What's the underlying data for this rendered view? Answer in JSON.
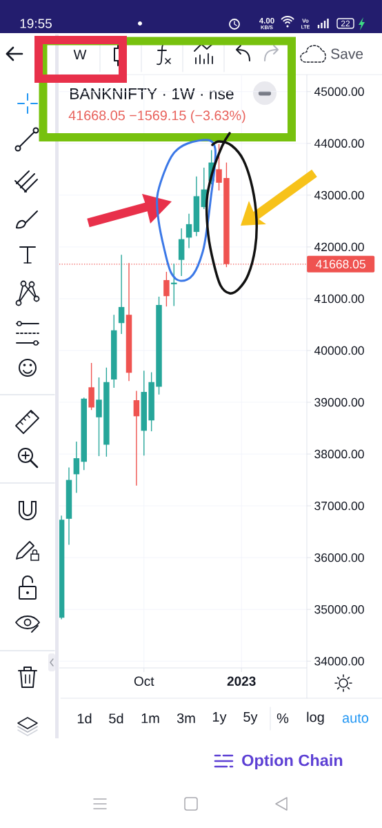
{
  "chart_data": {
    "type": "candlestick",
    "title": "BANKNIFTY · 1W · nse",
    "subtitle": "41668.05 −1569.15 (−3.63%)",
    "x": [
      "2022-07-18",
      "2022-07-25",
      "2022-08-01",
      "2022-08-08",
      "2022-08-15",
      "2022-08-22",
      "2022-08-29",
      "2022-09-05",
      "2022-09-12",
      "2022-09-19",
      "2022-09-26",
      "2022-10-03",
      "2022-10-10",
      "2022-10-17",
      "2022-10-24",
      "2022-10-31",
      "2022-11-07",
      "2022-11-14",
      "2022-11-21",
      "2022-11-28",
      "2022-12-05",
      "2022-12-12",
      "2022-12-19"
    ],
    "ohlc": [
      [
        34840,
        36810,
        34810,
        36730
      ],
      [
        36750,
        37740,
        36250,
        37500
      ],
      [
        37610,
        38240,
        37250,
        37920
      ],
      [
        37850,
        39090,
        37690,
        39070
      ],
      [
        39290,
        39760,
        38850,
        38900
      ],
      [
        38710,
        39480,
        37960,
        39050
      ],
      [
        38180,
        39670,
        37950,
        39390
      ],
      [
        39440,
        40690,
        39280,
        40390
      ],
      [
        40530,
        41850,
        40320,
        40840
      ],
      [
        40690,
        41690,
        39410,
        39570
      ],
      [
        39040,
        39220,
        37390,
        38730
      ],
      [
        38450,
        39610,
        37970,
        39200
      ],
      [
        38650,
        39580,
        38440,
        39390
      ],
      [
        39300,
        41040,
        39150,
        40880
      ],
      [
        41360,
        41520,
        40850,
        41050
      ],
      [
        41280,
        41680,
        40860,
        41310
      ],
      [
        41750,
        42360,
        41440,
        42150
      ],
      [
        42180,
        42640,
        41980,
        42440
      ],
      [
        42290,
        43360,
        42210,
        42980
      ],
      [
        42770,
        43530,
        42730,
        43110
      ],
      [
        43270,
        43870,
        43210,
        43630
      ],
      [
        43500,
        43990,
        43090,
        43240
      ],
      [
        43330,
        43630,
        41610,
        41668.05
      ]
    ],
    "colors": [
      "#26a69a",
      "#26a69a",
      "#26a69a",
      "#26a69a",
      "#ef5350",
      "#26a69a",
      "#26a69a",
      "#26a69a",
      "#26a69a",
      "#ef5350",
      "#ef5350",
      "#26a69a",
      "#26a69a",
      "#26a69a",
      "#ef5350",
      "#26a69a",
      "#26a69a",
      "#26a69a",
      "#26a69a",
      "#26a69a",
      "#26a69a",
      "#ef5350",
      "#ef5350"
    ],
    "xlim": [
      "2022-07-16",
      "2023-03-04"
    ],
    "xticks": [
      {
        "value": "2022-10-03",
        "label": "Oct"
      },
      {
        "value": "2023-01-02",
        "label": "2023"
      }
    ],
    "ylim": [
      33870,
      45330
    ],
    "yticks": [
      {
        "value": 34000,
        "label": "34000.00"
      },
      {
        "value": 35000,
        "label": "35000.00"
      },
      {
        "value": 36000,
        "label": "36000.00"
      },
      {
        "value": 37000,
        "label": "37000.00"
      },
      {
        "value": 38000,
        "label": "38000.00"
      },
      {
        "value": 39000,
        "label": "39000.00"
      },
      {
        "value": 40000,
        "label": "40000.00"
      },
      {
        "value": 41000,
        "label": "41000.00"
      },
      {
        "value": 42000,
        "label": "42000.00"
      },
      {
        "value": 43000,
        "label": "43000.00"
      },
      {
        "value": 44000,
        "label": "44000.00"
      },
      {
        "value": 45000,
        "label": "45000.00"
      }
    ],
    "grid": true,
    "ref_lines": [
      {
        "axis": "y",
        "value": 41668.05,
        "label": "41668.05",
        "color": "#ef5350",
        "line_style": "dotted"
      }
    ],
    "annotations": [
      "19:55",
      "4.00",
      "KB/S",
      "Vo",
      "LTE",
      "22",
      "W",
      "Save",
      "1d",
      "5d",
      "1m",
      "3m",
      "1y",
      "5y",
      "%",
      "log",
      "auto",
      "Option Chain"
    ]
  }
}
